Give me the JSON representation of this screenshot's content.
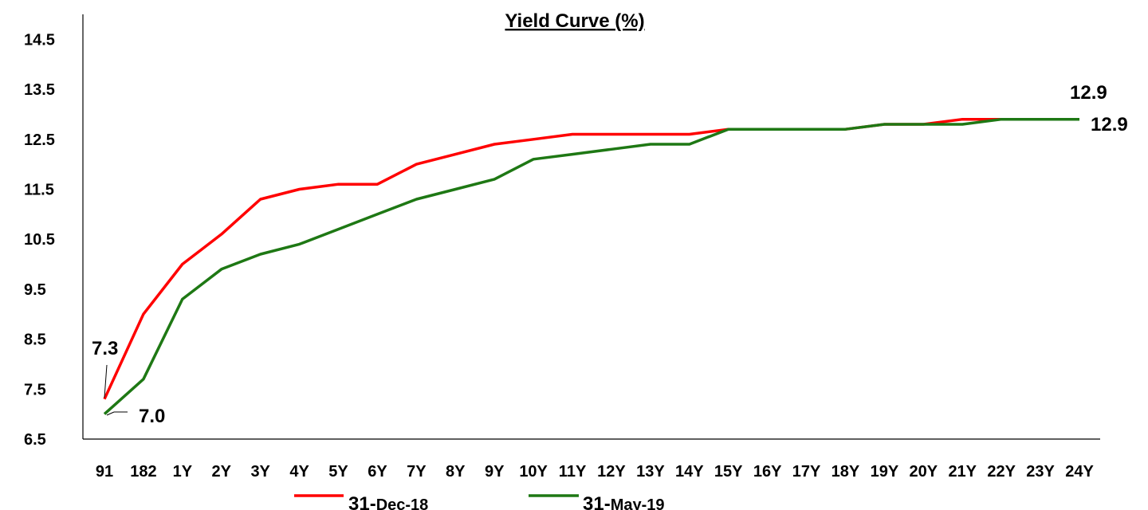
{
  "chart_data": {
    "type": "line",
    "title": "Yield Curve (%)",
    "categories": [
      "91",
      "182",
      "1Y",
      "2Y",
      "3Y",
      "4Y",
      "5Y",
      "6Y",
      "7Y",
      "8Y",
      "9Y",
      "10Y",
      "11Y",
      "12Y",
      "13Y",
      "14Y",
      "15Y",
      "16Y",
      "17Y",
      "18Y",
      "19Y",
      "20Y",
      "21Y",
      "22Y",
      "23Y",
      "24Y"
    ],
    "yticks": [
      "14.5",
      "13.5",
      "12.5",
      "11.5",
      "10.5",
      "9.5",
      "8.5",
      "7.5",
      "6.5"
    ],
    "ylim": [
      6.5,
      15.0
    ],
    "series": [
      {
        "name": "31-Dec-18",
        "legend_main": "31-",
        "legend_small": "Dec-18",
        "color": "#ff0000",
        "values": [
          7.3,
          9.0,
          10.0,
          10.6,
          11.3,
          11.5,
          11.6,
          11.6,
          12.0,
          12.2,
          12.4,
          12.5,
          12.6,
          12.6,
          12.6,
          12.6,
          12.7,
          12.7,
          12.7,
          12.7,
          12.8,
          12.8,
          12.9,
          12.9,
          12.9,
          12.9
        ]
      },
      {
        "name": "31-May-19",
        "legend_main": "31-",
        "legend_small": "May-19",
        "color": "#1e7814",
        "values": [
          7.0,
          7.7,
          9.3,
          9.9,
          10.2,
          10.4,
          10.7,
          11.0,
          11.3,
          11.5,
          11.7,
          12.1,
          12.2,
          12.3,
          12.4,
          12.4,
          12.7,
          12.7,
          12.7,
          12.7,
          12.8,
          12.8,
          12.8,
          12.9,
          12.9,
          12.9
        ]
      }
    ],
    "data_labels": {
      "dec_first": "7.3",
      "may_first": "7.0",
      "dec_last": "12.9",
      "may_last": "12.9"
    },
    "grid": false,
    "legend_position": "bottom"
  }
}
